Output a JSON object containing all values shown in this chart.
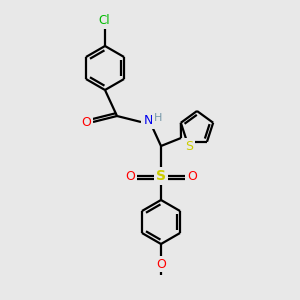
{
  "bg_color": "#e8e8e8",
  "bond_color": "#000000",
  "bond_width": 1.6,
  "atom_colors": {
    "Cl": "#00bb00",
    "O": "#ff0000",
    "N": "#0000ee",
    "H": "#7799aa",
    "S_sulfonyl": "#cccc00",
    "S_thiophene": "#cccc00"
  },
  "figsize": [
    3.0,
    3.0
  ],
  "dpi": 100
}
